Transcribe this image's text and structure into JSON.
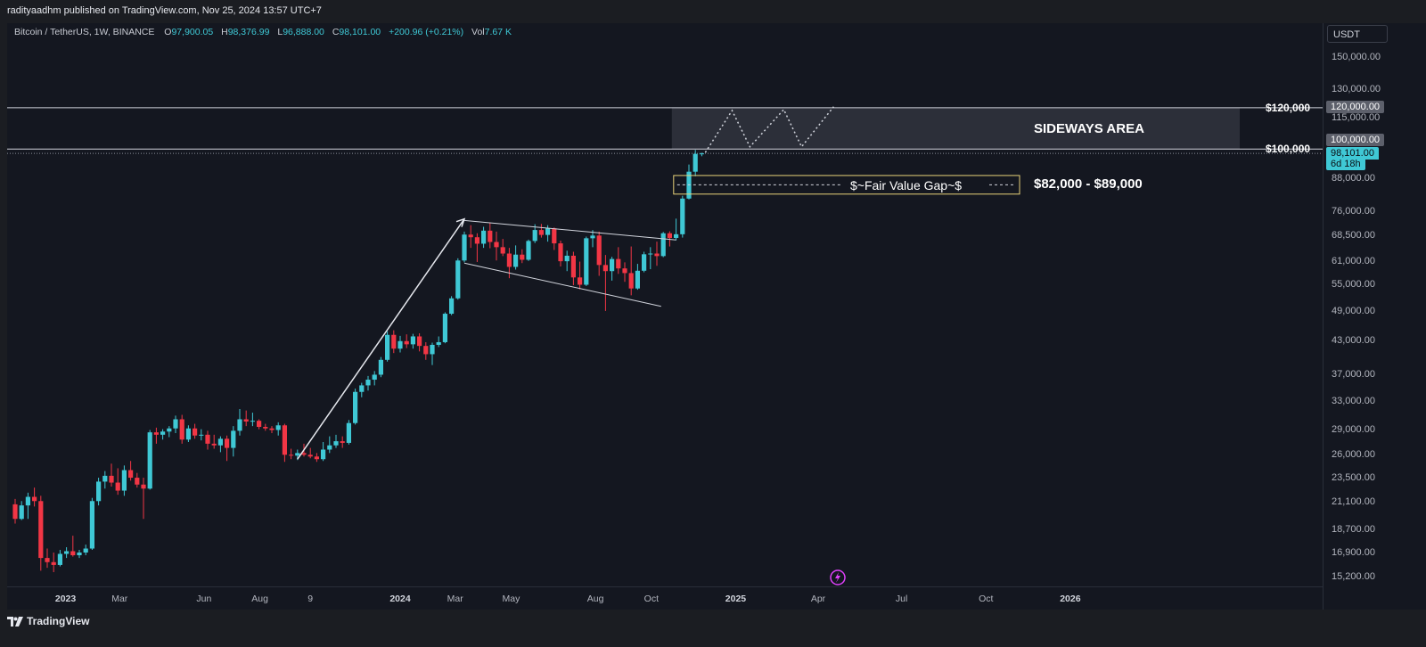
{
  "header": {
    "published": "radityaadhm published on TradingView.com, Nov 25, 2024 13:57 UTC+7"
  },
  "legend": {
    "symbol": "Bitcoin / TetherUS, 1W, BINANCE",
    "o_label": "O",
    "o": "97,900.05",
    "h_label": "H",
    "h": "98,376.99",
    "l_label": "L",
    "l": "96,888.00",
    "c_label": "C",
    "c": "98,101.00",
    "change": "+200.96 (+0.21%)",
    "vol_label": "Vol",
    "vol": "7.67 K"
  },
  "price_axis": {
    "currency": "USDT",
    "labels": [
      "150,000.00",
      "130,000.00",
      "115,000.00",
      "88,000.00",
      "76,000.00",
      "68,500.00",
      "61,000.00",
      "55,000.00",
      "49,000.00",
      "43,000.00",
      "37,000.00",
      "33,000.00",
      "29,000.00",
      "26,000.00",
      "23,500.00",
      "21,100.00",
      "18,700.00",
      "16,900.00",
      "15,200.00"
    ],
    "tag_120": "120,000.00",
    "tag_100": "100,000.00",
    "tag_last": "98,101.00",
    "tag_countdown": "6d 18h"
  },
  "time_axis": {
    "labels": [
      "2023",
      "Mar",
      "Jun",
      "Aug",
      "9",
      "2024",
      "Mar",
      "May",
      "Aug",
      "Oct",
      "2025",
      "Apr",
      "Jul",
      "Oct",
      "2026"
    ],
    "bold": [
      "2023",
      "2024",
      "2025",
      "2026"
    ]
  },
  "annotations": {
    "level_120": "$120,000",
    "level_100": "$100,000",
    "sideways": "SIDEWAYS AREA",
    "fvg": "$~Fair Value Gap~$",
    "fvg_range": "$82,000 - $89,000"
  },
  "footer": {
    "brand": "TradingView"
  },
  "colors": {
    "up": "#3fc8d5",
    "down": "#f23645",
    "bg": "#141720",
    "accent_tag": "#3fc8d5"
  },
  "chart_data": {
    "type": "candlestick",
    "interval": "1W",
    "yscale": "log",
    "ylim": [
      14500,
      175000
    ],
    "candles": [
      {
        "d": "2022-11-07",
        "o": 20900,
        "h": 21400,
        "l": 19200,
        "c": 19600
      },
      {
        "d": "2022-11-14",
        "o": 19600,
        "h": 21200,
        "l": 19500,
        "c": 20800
      },
      {
        "d": "2022-11-21",
        "o": 20800,
        "h": 22000,
        "l": 19600,
        "c": 21600
      },
      {
        "d": "2022-11-28",
        "o": 21600,
        "h": 22500,
        "l": 20700,
        "c": 21200
      },
      {
        "d": "2022-12-05",
        "o": 21200,
        "h": 21700,
        "l": 15600,
        "c": 16500
      },
      {
        "d": "2022-12-12",
        "o": 16500,
        "h": 17200,
        "l": 15800,
        "c": 16200
      },
      {
        "d": "2022-12-19",
        "o": 16200,
        "h": 16900,
        "l": 15500,
        "c": 16000
      },
      {
        "d": "2022-12-26",
        "o": 16000,
        "h": 17100,
        "l": 15900,
        "c": 16800
      },
      {
        "d": "2023-01-02",
        "o": 16800,
        "h": 17300,
        "l": 16500,
        "c": 17000
      },
      {
        "d": "2023-01-09",
        "o": 17000,
        "h": 18200,
        "l": 16600,
        "c": 16700
      },
      {
        "d": "2023-01-16",
        "o": 16700,
        "h": 17100,
        "l": 16500,
        "c": 16900
      },
      {
        "d": "2023-01-23",
        "o": 16900,
        "h": 17500,
        "l": 16700,
        "c": 17200
      },
      {
        "d": "2023-01-30",
        "o": 17200,
        "h": 21500,
        "l": 17100,
        "c": 21200
      },
      {
        "d": "2023-02-06",
        "o": 21200,
        "h": 23500,
        "l": 20800,
        "c": 23100
      },
      {
        "d": "2023-02-13",
        "o": 23100,
        "h": 24200,
        "l": 22400,
        "c": 23700
      },
      {
        "d": "2023-02-20",
        "o": 23700,
        "h": 25000,
        "l": 22600,
        "c": 23000
      },
      {
        "d": "2023-02-27",
        "o": 23000,
        "h": 24500,
        "l": 21800,
        "c": 22200
      },
      {
        "d": "2023-03-06",
        "o": 22200,
        "h": 24800,
        "l": 21700,
        "c": 24300
      },
      {
        "d": "2023-03-13",
        "o": 24300,
        "h": 25300,
        "l": 23200,
        "c": 23500
      },
      {
        "d": "2023-03-20",
        "o": 23500,
        "h": 24000,
        "l": 22500,
        "c": 22800
      },
      {
        "d": "2023-03-27",
        "o": 22800,
        "h": 23500,
        "l": 19600,
        "c": 22400
      },
      {
        "d": "2023-04-03",
        "o": 22400,
        "h": 29000,
        "l": 22300,
        "c": 28700
      },
      {
        "d": "2023-04-10",
        "o": 28700,
        "h": 29300,
        "l": 27300,
        "c": 28400
      },
      {
        "d": "2023-04-17",
        "o": 28400,
        "h": 29100,
        "l": 27800,
        "c": 28800
      },
      {
        "d": "2023-04-24",
        "o": 28800,
        "h": 29500,
        "l": 28100,
        "c": 29200
      },
      {
        "d": "2023-05-01",
        "o": 29200,
        "h": 30900,
        "l": 28600,
        "c": 30400
      },
      {
        "d": "2023-05-08",
        "o": 30400,
        "h": 31000,
        "l": 27300,
        "c": 27800
      },
      {
        "d": "2023-05-15",
        "o": 27800,
        "h": 29600,
        "l": 27500,
        "c": 29200
      },
      {
        "d": "2023-05-22",
        "o": 29200,
        "h": 29800,
        "l": 27900,
        "c": 28300
      },
      {
        "d": "2023-05-29",
        "o": 28300,
        "h": 29100,
        "l": 27700,
        "c": 28400
      },
      {
        "d": "2023-06-05",
        "o": 28400,
        "h": 28900,
        "l": 26600,
        "c": 27300
      },
      {
        "d": "2023-06-12",
        "o": 27300,
        "h": 28400,
        "l": 26700,
        "c": 27100
      },
      {
        "d": "2023-06-19",
        "o": 27100,
        "h": 28200,
        "l": 26300,
        "c": 27900
      },
      {
        "d": "2023-06-26",
        "o": 27900,
        "h": 28300,
        "l": 25300,
        "c": 26800
      },
      {
        "d": "2023-07-03",
        "o": 26800,
        "h": 29500,
        "l": 25800,
        "c": 28900
      },
      {
        "d": "2023-07-10",
        "o": 28900,
        "h": 31800,
        "l": 28300,
        "c": 30400
      },
      {
        "d": "2023-07-17",
        "o": 30400,
        "h": 31600,
        "l": 29500,
        "c": 30100
      },
      {
        "d": "2023-07-24",
        "o": 30100,
        "h": 31300,
        "l": 29500,
        "c": 30200
      },
      {
        "d": "2023-07-31",
        "o": 30200,
        "h": 30400,
        "l": 29100,
        "c": 29400
      },
      {
        "d": "2023-08-07",
        "o": 29400,
        "h": 29800,
        "l": 28900,
        "c": 29200
      },
      {
        "d": "2023-08-14",
        "o": 29200,
        "h": 29500,
        "l": 28600,
        "c": 29000
      },
      {
        "d": "2023-08-21",
        "o": 29000,
        "h": 30000,
        "l": 28300,
        "c": 29600
      },
      {
        "d": "2023-08-28",
        "o": 29600,
        "h": 29800,
        "l": 25200,
        "c": 26000
      },
      {
        "d": "2023-09-04",
        "o": 26000,
        "h": 26700,
        "l": 25500,
        "c": 25900
      },
      {
        "d": "2023-09-11",
        "o": 25900,
        "h": 26600,
        "l": 25400,
        "c": 26200
      },
      {
        "d": "2023-09-18",
        "o": 26200,
        "h": 27300,
        "l": 25800,
        "c": 26000
      },
      {
        "d": "2023-09-25",
        "o": 26000,
        "h": 26800,
        "l": 25600,
        "c": 25800
      },
      {
        "d": "2023-10-02",
        "o": 25800,
        "h": 26200,
        "l": 25200,
        "c": 25500
      },
      {
        "d": "2023-10-09",
        "o": 25500,
        "h": 27500,
        "l": 25300,
        "c": 26600
      },
      {
        "d": "2023-10-16",
        "o": 26600,
        "h": 28200,
        "l": 26200,
        "c": 27100
      },
      {
        "d": "2023-10-23",
        "o": 27100,
        "h": 28400,
        "l": 26800,
        "c": 27600
      },
      {
        "d": "2023-10-30",
        "o": 27600,
        "h": 28200,
        "l": 26800,
        "c": 27400
      },
      {
        "d": "2023-11-06",
        "o": 27400,
        "h": 30300,
        "l": 27200,
        "c": 29900
      },
      {
        "d": "2023-11-13",
        "o": 29900,
        "h": 34800,
        "l": 29700,
        "c": 34300
      },
      {
        "d": "2023-11-20",
        "o": 34300,
        "h": 35700,
        "l": 33500,
        "c": 35300
      },
      {
        "d": "2023-11-27",
        "o": 35300,
        "h": 36800,
        "l": 34500,
        "c": 36200
      },
      {
        "d": "2023-12-04",
        "o": 36200,
        "h": 37600,
        "l": 35300,
        "c": 37000
      },
      {
        "d": "2023-12-11",
        "o": 37000,
        "h": 40000,
        "l": 36600,
        "c": 39500
      },
      {
        "d": "2023-12-18",
        "o": 39500,
        "h": 44800,
        "l": 39200,
        "c": 44100
      },
      {
        "d": "2023-12-25",
        "o": 44100,
        "h": 45000,
        "l": 40700,
        "c": 41500
      },
      {
        "d": "2024-01-01",
        "o": 41500,
        "h": 43900,
        "l": 40800,
        "c": 42900
      },
      {
        "d": "2024-01-08",
        "o": 42900,
        "h": 44200,
        "l": 41600,
        "c": 42300
      },
      {
        "d": "2024-01-15",
        "o": 42300,
        "h": 44300,
        "l": 41500,
        "c": 43800
      },
      {
        "d": "2024-01-22",
        "o": 43800,
        "h": 44400,
        "l": 41000,
        "c": 42000
      },
      {
        "d": "2024-01-29",
        "o": 42000,
        "h": 42700,
        "l": 39500,
        "c": 40500
      },
      {
        "d": "2024-02-05",
        "o": 40500,
        "h": 42600,
        "l": 38600,
        "c": 42200
      },
      {
        "d": "2024-02-12",
        "o": 42200,
        "h": 43800,
        "l": 41800,
        "c": 42700
      },
      {
        "d": "2024-02-19",
        "o": 42700,
        "h": 48700,
        "l": 42500,
        "c": 48400
      },
      {
        "d": "2024-02-26",
        "o": 48400,
        "h": 52300,
        "l": 48100,
        "c": 51800
      },
      {
        "d": "2024-03-04",
        "o": 51800,
        "h": 61800,
        "l": 51500,
        "c": 61200
      },
      {
        "d": "2024-03-11",
        "o": 61200,
        "h": 69500,
        "l": 60700,
        "c": 68600
      },
      {
        "d": "2024-03-18",
        "o": 68600,
        "h": 71500,
        "l": 64700,
        "c": 67800
      },
      {
        "d": "2024-03-25",
        "o": 67800,
        "h": 69000,
        "l": 60800,
        "c": 65900
      },
      {
        "d": "2024-04-01",
        "o": 65900,
        "h": 71000,
        "l": 64700,
        "c": 69800
      },
      {
        "d": "2024-04-08",
        "o": 69800,
        "h": 72200,
        "l": 64600,
        "c": 66400
      },
      {
        "d": "2024-04-15",
        "o": 66400,
        "h": 69500,
        "l": 61200,
        "c": 64900
      },
      {
        "d": "2024-04-22",
        "o": 64900,
        "h": 67300,
        "l": 62400,
        "c": 63100
      },
      {
        "d": "2024-04-29",
        "o": 63100,
        "h": 64700,
        "l": 56600,
        "c": 59500
      },
      {
        "d": "2024-05-06",
        "o": 59500,
        "h": 65400,
        "l": 58800,
        "c": 62800
      },
      {
        "d": "2024-05-13",
        "o": 62800,
        "h": 64300,
        "l": 60500,
        "c": 61400
      },
      {
        "d": "2024-05-20",
        "o": 61400,
        "h": 67100,
        "l": 61100,
        "c": 66700
      },
      {
        "d": "2024-05-27",
        "o": 66700,
        "h": 71800,
        "l": 66100,
        "c": 70000
      },
      {
        "d": "2024-06-03",
        "o": 70000,
        "h": 71900,
        "l": 67700,
        "c": 68500
      },
      {
        "d": "2024-06-10",
        "o": 68500,
        "h": 71500,
        "l": 66500,
        "c": 70500
      },
      {
        "d": "2024-06-17",
        "o": 70500,
        "h": 70800,
        "l": 64100,
        "c": 66000
      },
      {
        "d": "2024-06-24",
        "o": 66000,
        "h": 66800,
        "l": 59600,
        "c": 61000
      },
      {
        "d": "2024-07-01",
        "o": 61000,
        "h": 63900,
        "l": 58400,
        "c": 62500
      },
      {
        "d": "2024-07-08",
        "o": 62500,
        "h": 63600,
        "l": 54900,
        "c": 56800
      },
      {
        "d": "2024-07-15",
        "o": 56800,
        "h": 60900,
        "l": 53900,
        "c": 55000
      },
      {
        "d": "2024-07-22",
        "o": 55000,
        "h": 68000,
        "l": 54700,
        "c": 67500
      },
      {
        "d": "2024-07-29",
        "o": 67500,
        "h": 70000,
        "l": 64900,
        "c": 68300
      },
      {
        "d": "2024-08-05",
        "o": 68300,
        "h": 69500,
        "l": 57200,
        "c": 60000
      },
      {
        "d": "2024-08-12",
        "o": 60000,
        "h": 62700,
        "l": 49000,
        "c": 58400
      },
      {
        "d": "2024-08-19",
        "o": 58400,
        "h": 62200,
        "l": 56000,
        "c": 61600
      },
      {
        "d": "2024-08-26",
        "o": 61600,
        "h": 64900,
        "l": 57700,
        "c": 59100
      },
      {
        "d": "2024-09-02",
        "o": 59100,
        "h": 60700,
        "l": 55700,
        "c": 57900
      },
      {
        "d": "2024-09-09",
        "o": 57900,
        "h": 65100,
        "l": 52500,
        "c": 54100
      },
      {
        "d": "2024-09-16",
        "o": 54100,
        "h": 60300,
        "l": 53800,
        "c": 58500
      },
      {
        "d": "2024-09-23",
        "o": 58500,
        "h": 63600,
        "l": 58100,
        "c": 62900
      },
      {
        "d": "2024-09-30",
        "o": 62900,
        "h": 64900,
        "l": 58900,
        "c": 63100
      },
      {
        "d": "2024-10-07",
        "o": 63100,
        "h": 66500,
        "l": 59800,
        "c": 62400
      },
      {
        "d": "2024-10-14",
        "o": 62400,
        "h": 69400,
        "l": 62100,
        "c": 69000
      },
      {
        "d": "2024-10-21",
        "o": 69000,
        "h": 69600,
        "l": 65100,
        "c": 67600
      },
      {
        "d": "2024-10-28",
        "o": 67600,
        "h": 73600,
        "l": 66900,
        "c": 68700
      },
      {
        "d": "2024-11-04",
        "o": 68700,
        "h": 81400,
        "l": 67700,
        "c": 80400
      },
      {
        "d": "2024-11-11",
        "o": 80400,
        "h": 93400,
        "l": 80100,
        "c": 90500
      },
      {
        "d": "2024-11-18",
        "o": 90500,
        "h": 99600,
        "l": 88700,
        "c": 97900
      },
      {
        "d": "2024-11-25",
        "o": 97900,
        "h": 98377,
        "l": 96888,
        "c": 98101
      }
    ]
  }
}
